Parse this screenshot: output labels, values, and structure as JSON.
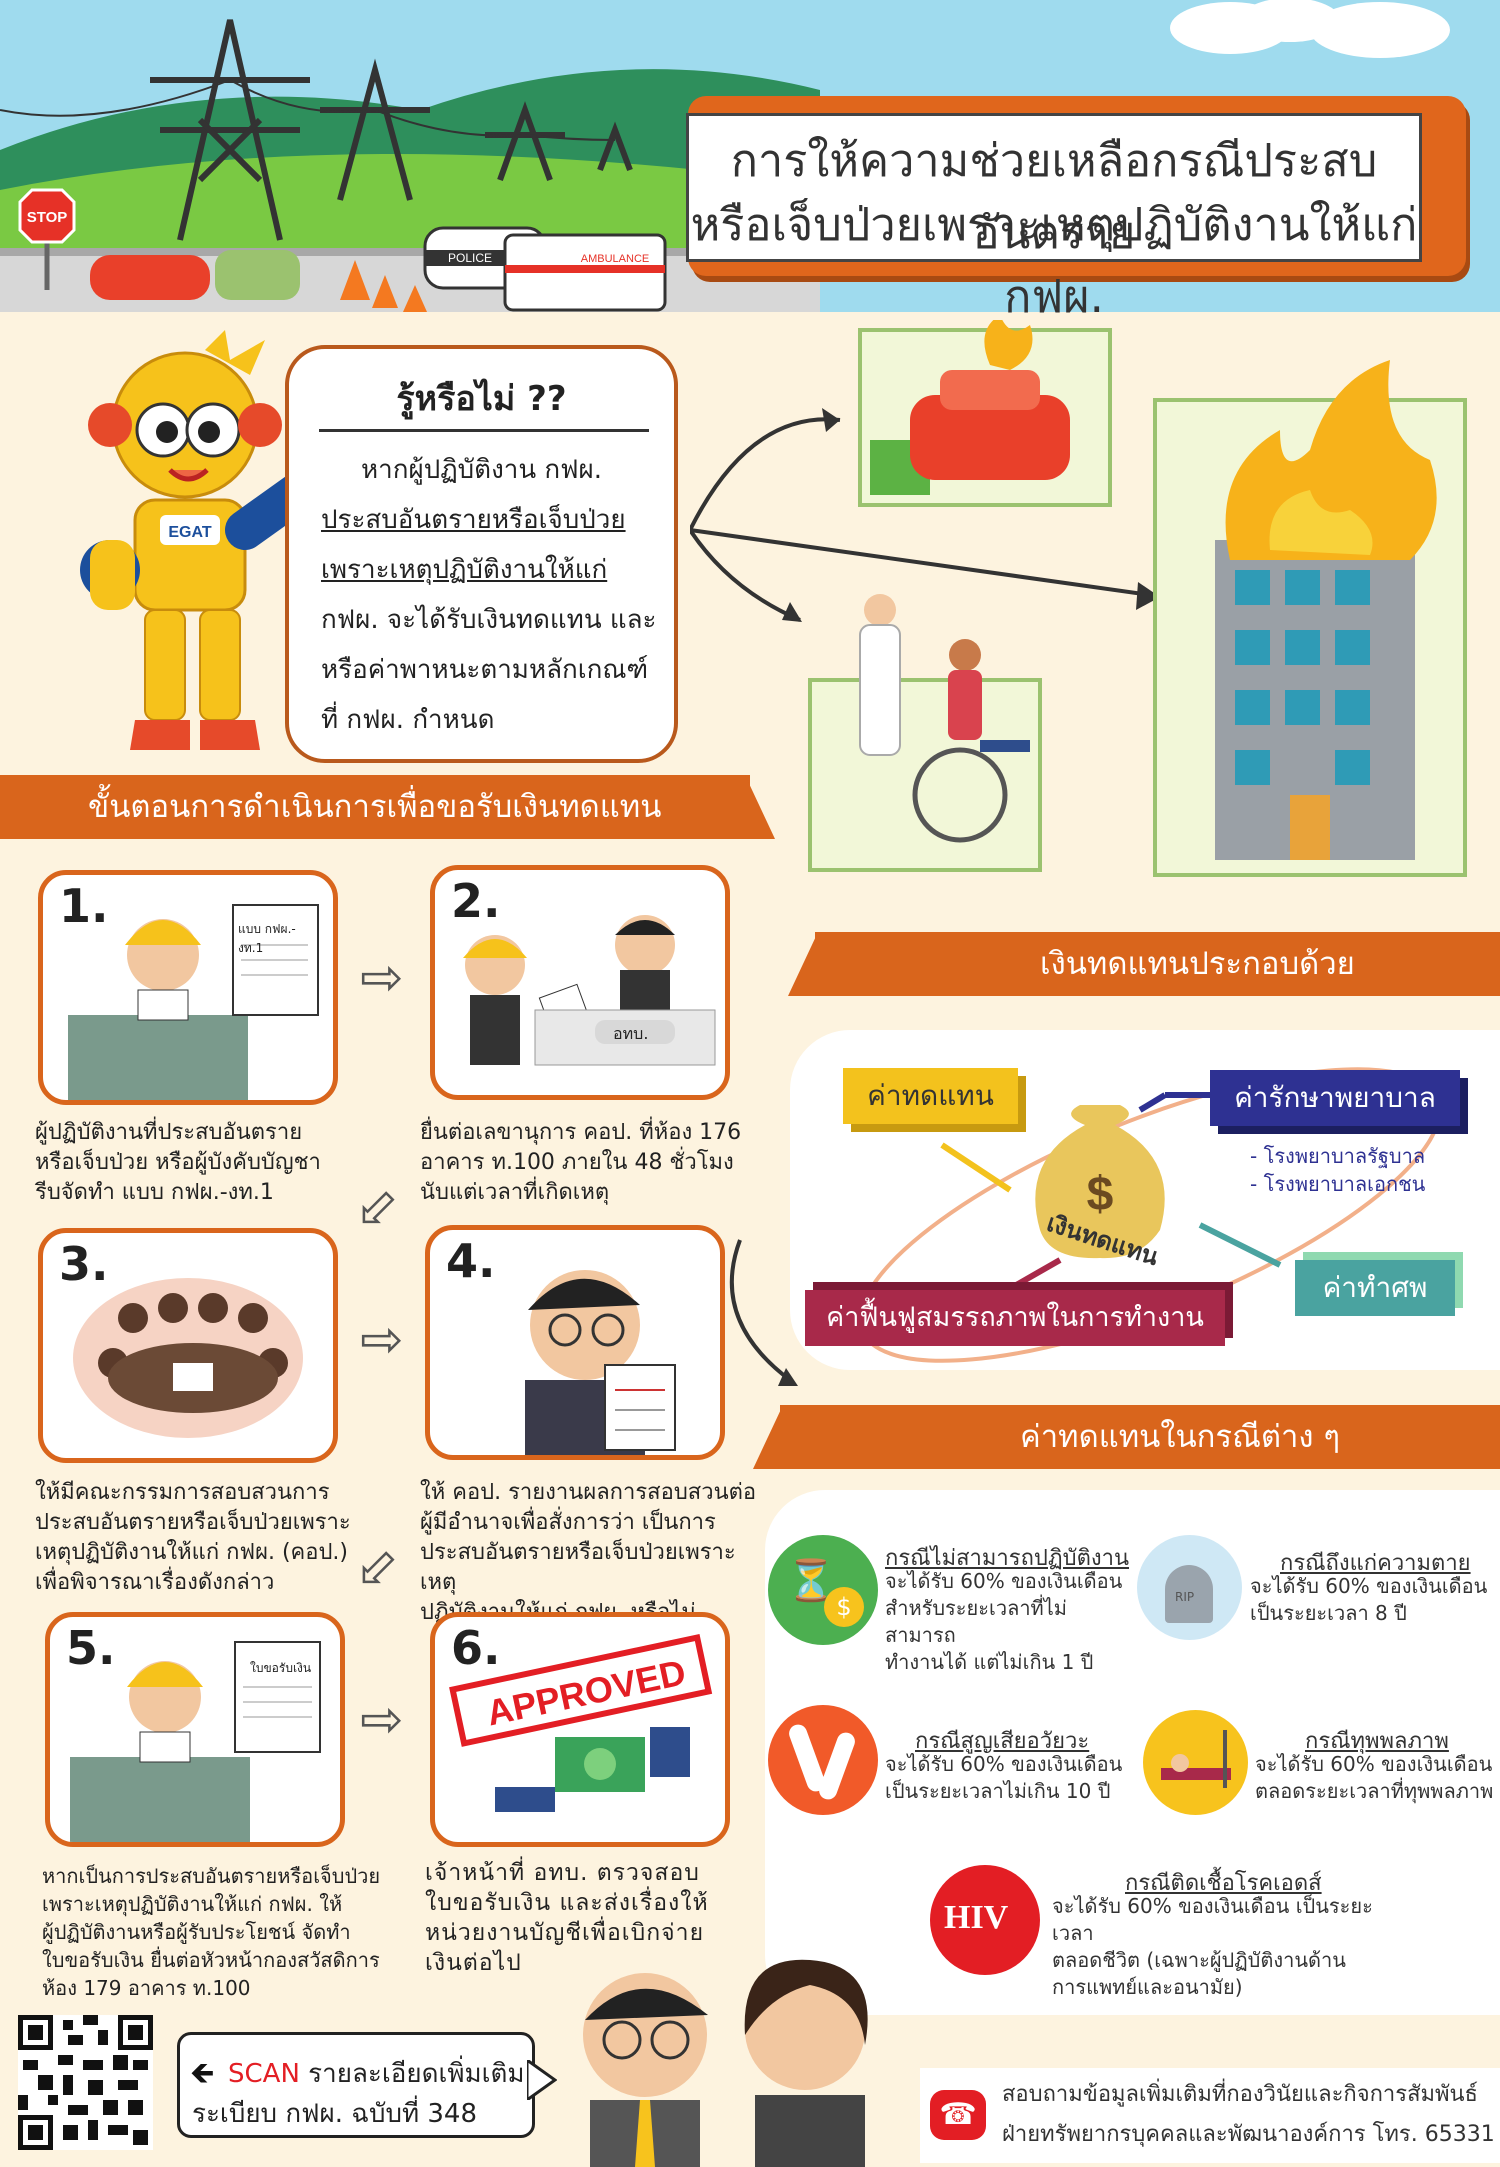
{
  "header": {
    "title_line1": "การให้ความช่วยเหลือกรณีประสบอันตราย",
    "title_line2": "หรือเจ็บป่วยเพราะเหตุปฏิบัติงานให้แก่ กฟผ.",
    "stop_sign": "STOP",
    "police_label": "POLICE",
    "ambulance_label": "AMBULANCE",
    "mascot_badge": "EGAT"
  },
  "bubble": {
    "heading": "รู้หรือไม่ ??",
    "lines": [
      "หากผู้ปฏิบัติงาน กฟผ.",
      "ประสบอันตรายหรือเจ็บป่วย",
      "เพราะเหตุปฏิบัติงานให้แก่",
      "กฟผ. จะได้รับเงินทดแทน และ",
      "หรือค่าพาหนะตามหลักเกณฑ์",
      "ที่ กฟผ. กำหนด"
    ]
  },
  "steps_section": {
    "banner": "ขั้นตอนการดำเนินการเพื่อขอรับเงินทดแทน",
    "steps": [
      {
        "num": "1.",
        "form_label": "แบบ กฟผ.-งท.1",
        "text": [
          "ผู้ปฏิบัติงานที่ประสบอันตราย",
          "หรือเจ็บป่วย หรือผู้บังคับบัญชา",
          "รีบจัดทำ แบบ กฟผ.-งท.1"
        ]
      },
      {
        "num": "2.",
        "desk_label": "อทบ.",
        "text": [
          "ยื่นต่อเลขานุการ คอป. ที่ห้อง 176",
          "อาคาร ท.100 ภายใน 48 ชั่วโมง",
          "นับแต่เวลาที่เกิดเหตุ"
        ]
      },
      {
        "num": "3.",
        "text": [
          "ให้มีคณะกรรมการสอบสวนการ",
          "ประสบอันตรายหรือเจ็บป่วยเพราะ",
          "เหตุปฏิบัติงานให้แก่ กฟผ. (คอป.)",
          "เพื่อพิจารณาเรื่องดังกล่าว"
        ]
      },
      {
        "num": "4.",
        "text": [
          "ให้ คอป. รายงานผลการสอบสวนต่อ",
          "ผู้มีอำนาจเพื่อสั่งการว่า เป็นการ",
          "ประสบอันตรายหรือเจ็บป่วยเพราะเหตุ",
          "ปฏิบัติงานให้แก่ กฟผ. หรือไม่"
        ]
      },
      {
        "num": "5.",
        "form_label": "ใบขอรับเงิน",
        "text": [
          "หากเป็นการประสบอันตรายหรือเจ็บป่วย",
          "เพราะเหตุปฏิบัติงานให้แก่ กฟผ. ให้",
          "ผู้ปฏิบัติงานหรือผู้รับประโยชน์ จัดทำ",
          "ใบขอรับเงิน ยื่นต่อหัวหน้ากองสวัสดิการ",
          "ห้อง 179 อาคาร ท.100"
        ]
      },
      {
        "num": "6.",
        "stamp": "APPROVED",
        "text": [
          "เจ้าหน้าที่ อทบ. ตรวจสอบ",
          "ใบขอรับเงิน และส่งเรื่องให้",
          "หน่วยงานบัญชีเพื่อเบิกจ่าย",
          "เงินต่อไป"
        ]
      }
    ]
  },
  "components": {
    "banner": "เงินทดแทนประกอบด้วย",
    "center_label": "เงินทดแทน",
    "items": {
      "compensation": "ค่าทดแทน",
      "medical": "ค่ารักษาพยาบาล",
      "funeral": "ค่าทำศพ",
      "rehab": "ค่าฟื้นฟูสมรรถภาพในการทำงาน"
    },
    "hospitals": [
      "- โรงพยาบาลรัฐบาล",
      "- โรงพยาบาลเอกชน"
    ],
    "colors": {
      "compensation": "#f3c21d",
      "medical": "#2e3192",
      "funeral": "#4aa3a0",
      "rehab": "#a8294a"
    }
  },
  "cases": {
    "banner": "ค่าทดแทนในกรณีต่าง ๆ",
    "items": [
      {
        "id": "unable",
        "title": "กรณีไม่สามารถปฏิบัติงาน",
        "text": [
          "จะได้รับ 60% ของเงินเดือน",
          "สำหรับระยะเวลาที่ไม่สามารถ",
          "ทำงานได้ แต่ไม่เกิน 1 ปี"
        ],
        "icon": "hourglass-money-icon",
        "color": "#4caf50"
      },
      {
        "id": "death",
        "title": "กรณีถึงแก่ความตาย",
        "text": [
          "จะได้รับ 60% ของเงินเดือน",
          "เป็นระยะเวลา 8 ปี"
        ],
        "icon": "tombstone-icon",
        "color": "#cfe8f5",
        "rip": "RIP"
      },
      {
        "id": "organ",
        "title": "กรณีสูญเสียอวัยวะ",
        "text": [
          "จะได้รับ 60% ของเงินเดือน",
          "เป็นระยะเวลาไม่เกิน 10 ปี"
        ],
        "icon": "leg-bone-icon",
        "color": "#f15a29"
      },
      {
        "id": "disabled",
        "title": "กรณีทุพพลภาพ",
        "text": [
          "จะได้รับ 60% ของเงินเดือน",
          "ตลอดระยะเวลาที่ทุพพลภาพ"
        ],
        "icon": "hospital-bed-icon",
        "color": "#f7c31d"
      },
      {
        "id": "hiv",
        "title": "กรณีติดเชื้อโรคเอดส์",
        "text": [
          "จะได้รับ 60% ของเงินเดือน เป็นระยะเวลา",
          "ตลอดชีวิต (เฉพาะผู้ปฏิบัติงานด้าน",
          "การแพทย์และอนามัย)"
        ],
        "icon": "hiv-syringe-icon",
        "color": "#e31e24",
        "badge": "HIV"
      }
    ]
  },
  "footer": {
    "scan_word": "SCAN",
    "scan_rest": " รายละเอียดเพิ่มเติม",
    "scan_line2": "ระเบียบ กฟผ. ฉบับที่ 348",
    "contact_line1": "สอบถามข้อมูลเพิ่มเติมที่กองวินัยและกิจการสัมพันธ์",
    "contact_line2": "ฝ่ายทรัพยากรบุคคลและพัฒนาองค์การ โทร. 65331"
  }
}
